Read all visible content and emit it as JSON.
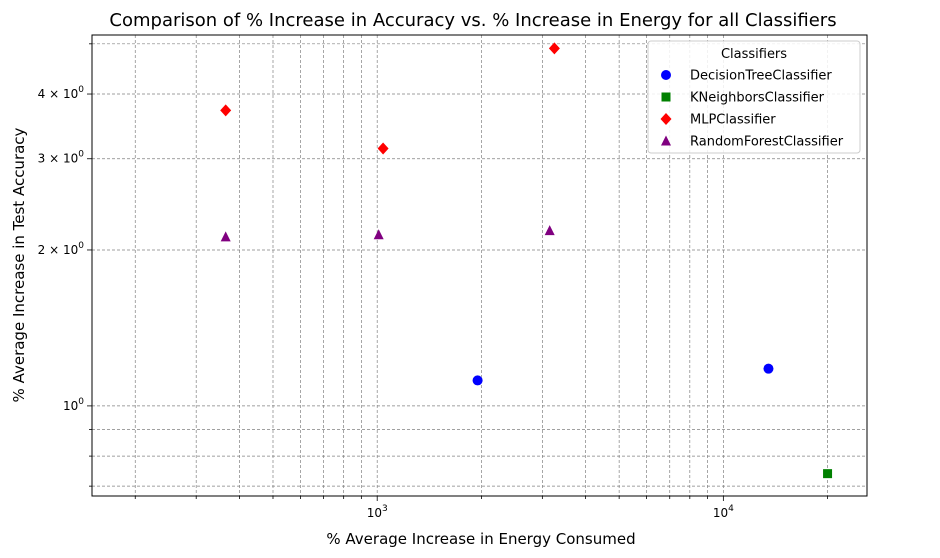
{
  "chart_data": {
    "type": "scatter",
    "title": "Comparison of % Increase in Accuracy vs. % Increase in Energy for all Classifiers",
    "xlabel": "% Average Increase in Energy Consumed",
    "ylabel": "% Average Increase in Test Accuracy",
    "xscale": "log",
    "yscale": "log",
    "xlim": [
      150,
      26000
    ],
    "ylim": [
      0.67,
      5.2
    ],
    "grid": true,
    "legend_title": "Classifiers",
    "legend_position": "top-right",
    "x_tick_labels": [
      {
        "value": 1000,
        "base": "10",
        "exp": "3"
      },
      {
        "value": 10000,
        "base": "10",
        "exp": "4"
      }
    ],
    "y_tick_labels": [
      {
        "value": 1,
        "base": "10",
        "exp": "0",
        "prefix": ""
      },
      {
        "value": 2,
        "base": "10",
        "exp": "0",
        "prefix": "2 × "
      },
      {
        "value": 3,
        "base": "10",
        "exp": "0",
        "prefix": "3 × "
      },
      {
        "value": 4,
        "base": "10",
        "exp": "0",
        "prefix": "4 × "
      }
    ],
    "series": [
      {
        "name": "DecisionTreeClassifier",
        "color": "#0000ff",
        "marker": "circle",
        "points": [
          {
            "x": 1950,
            "y": 1.12
          },
          {
            "x": 13500,
            "y": 1.18
          }
        ]
      },
      {
        "name": "KNeighborsClassifier",
        "color": "#008000",
        "marker": "square",
        "points": [
          {
            "x": 20000,
            "y": 0.74
          }
        ]
      },
      {
        "name": "MLPClassifier",
        "color": "#ff0000",
        "marker": "diamond",
        "points": [
          {
            "x": 365,
            "y": 3.72
          },
          {
            "x": 1040,
            "y": 3.14
          },
          {
            "x": 3250,
            "y": 4.9
          }
        ]
      },
      {
        "name": "RandomForestClassifier",
        "color": "#800080",
        "marker": "triangle",
        "points": [
          {
            "x": 365,
            "y": 2.12
          },
          {
            "x": 1010,
            "y": 2.14
          },
          {
            "x": 3150,
            "y": 2.18
          }
        ]
      }
    ]
  }
}
